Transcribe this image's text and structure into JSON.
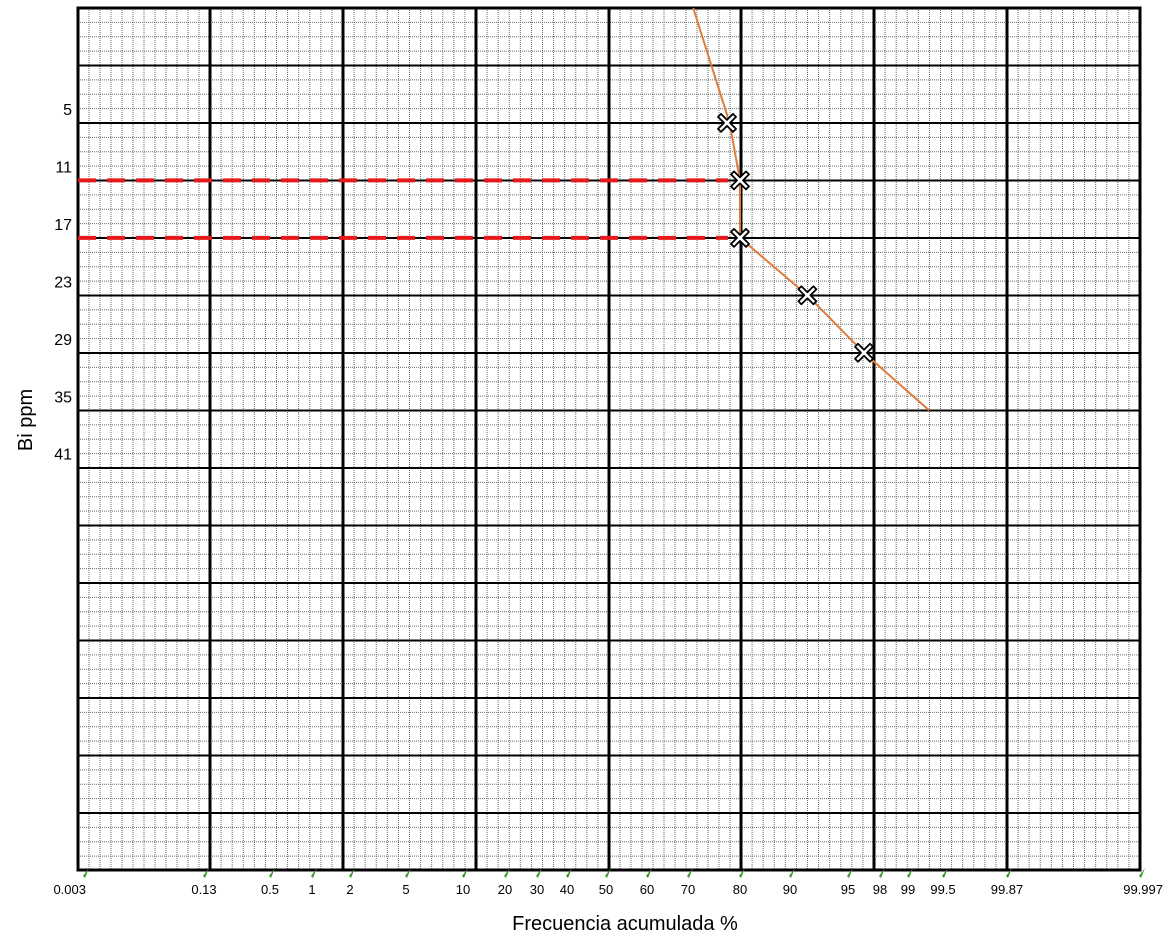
{
  "chart_data": {
    "type": "line",
    "title": "",
    "xlabel": "Frecuencia acumulada %",
    "ylabel": "Bi ppm",
    "x_scale": "probability",
    "x_ticks": [
      "0.003",
      "0.13",
      "0.5",
      "1",
      "2",
      "5",
      "10",
      "20",
      "30",
      "40",
      "50",
      "60",
      "70",
      "80",
      "90",
      "95",
      "98",
      "99",
      "99.5",
      "99.87",
      "99.997"
    ],
    "y_ticks": [
      "5",
      "11",
      "17",
      "23",
      "29",
      "35",
      "41"
    ],
    "ylim": [
      -7,
      83
    ],
    "series": [
      {
        "type": "line",
        "color": "#e07b39",
        "points": [
          {
            "x": 71,
            "y": -7
          },
          {
            "x": 78,
            "y": 5
          },
          {
            "x": 80,
            "y": 11
          },
          {
            "x": 80,
            "y": 17
          },
          {
            "x": 91.5,
            "y": 23
          },
          {
            "x": 96.5,
            "y": 29
          },
          {
            "x": 99.3,
            "y": 35
          }
        ]
      },
      {
        "type": "scatter",
        "marker": "x-cross",
        "points": [
          {
            "x": 77.5,
            "y": 5
          },
          {
            "x": 80,
            "y": 11
          },
          {
            "x": 80,
            "y": 17
          },
          {
            "x": 91.5,
            "y": 23
          },
          {
            "x": 96.5,
            "y": 29
          }
        ]
      }
    ],
    "threshold_lines": [
      {
        "y": 11,
        "color": "#e8191b",
        "style": "dashed"
      },
      {
        "y": 17,
        "color": "#e8191b",
        "style": "dashed"
      }
    ],
    "grid": true,
    "legend": "none",
    "colors": {
      "major_grid": "#000000",
      "minor_grid": "#6b6b6b",
      "tick_marker": "#3a9a2a"
    }
  }
}
